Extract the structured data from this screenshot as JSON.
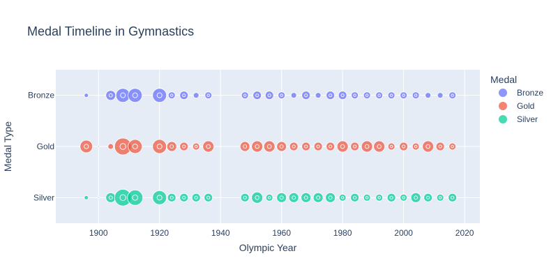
{
  "chart_data": {
    "type": "scatter",
    "title": "Medal Timeline in Gymnastics",
    "xlabel": "Olympic Year",
    "ylabel": "Medal Type",
    "xlim": [
      1886,
      2025
    ],
    "x_ticks": [
      1900,
      1920,
      1940,
      1960,
      1980,
      2000,
      2020
    ],
    "categories": [
      "Bronze",
      "Gold",
      "Silver"
    ],
    "legend": {
      "title": "Medal",
      "position": "right",
      "entries": [
        "Bronze",
        "Gold",
        "Silver"
      ]
    },
    "grid": true,
    "series": [
      {
        "name": "Bronze",
        "color": "#636efa",
        "points": [
          {
            "x": 1896,
            "size": 3
          },
          {
            "x": 1904,
            "size": 7
          },
          {
            "x": 1908,
            "size": 10
          },
          {
            "x": 1912,
            "size": 10
          },
          {
            "x": 1920,
            "size": 10
          },
          {
            "x": 1924,
            "size": 5
          },
          {
            "x": 1928,
            "size": 6
          },
          {
            "x": 1932,
            "size": 4
          },
          {
            "x": 1936,
            "size": 5
          },
          {
            "x": 1948,
            "size": 5
          },
          {
            "x": 1952,
            "size": 6
          },
          {
            "x": 1956,
            "size": 6
          },
          {
            "x": 1960,
            "size": 5
          },
          {
            "x": 1964,
            "size": 4
          },
          {
            "x": 1968,
            "size": 6
          },
          {
            "x": 1972,
            "size": 4
          },
          {
            "x": 1976,
            "size": 6
          },
          {
            "x": 1980,
            "size": 6
          },
          {
            "x": 1984,
            "size": 5
          },
          {
            "x": 1988,
            "size": 5
          },
          {
            "x": 1992,
            "size": 5
          },
          {
            "x": 1996,
            "size": 5
          },
          {
            "x": 2000,
            "size": 5
          },
          {
            "x": 2004,
            "size": 5
          },
          {
            "x": 2008,
            "size": 4
          },
          {
            "x": 2012,
            "size": 4
          },
          {
            "x": 2016,
            "size": 5
          }
        ]
      },
      {
        "name": "Gold",
        "color": "#ef553b",
        "points": [
          {
            "x": 1896,
            "size": 9
          },
          {
            "x": 1900,
            "size": 1
          },
          {
            "x": 1904,
            "size": 4
          },
          {
            "x": 1908,
            "size": 12
          },
          {
            "x": 1912,
            "size": 10
          },
          {
            "x": 1920,
            "size": 10
          },
          {
            "x": 1924,
            "size": 7
          },
          {
            "x": 1928,
            "size": 6
          },
          {
            "x": 1932,
            "size": 5
          },
          {
            "x": 1936,
            "size": 8
          },
          {
            "x": 1948,
            "size": 7
          },
          {
            "x": 1952,
            "size": 8
          },
          {
            "x": 1956,
            "size": 8
          },
          {
            "x": 1960,
            "size": 7
          },
          {
            "x": 1964,
            "size": 6
          },
          {
            "x": 1968,
            "size": 6
          },
          {
            "x": 1972,
            "size": 6
          },
          {
            "x": 1976,
            "size": 6
          },
          {
            "x": 1980,
            "size": 8
          },
          {
            "x": 1984,
            "size": 6
          },
          {
            "x": 1988,
            "size": 8
          },
          {
            "x": 1992,
            "size": 8
          },
          {
            "x": 1996,
            "size": 5
          },
          {
            "x": 2000,
            "size": 6
          },
          {
            "x": 2004,
            "size": 5
          },
          {
            "x": 2008,
            "size": 8
          },
          {
            "x": 2012,
            "size": 6
          },
          {
            "x": 2016,
            "size": 5
          }
        ]
      },
      {
        "name": "Silver",
        "color": "#00cc96",
        "points": [
          {
            "x": 1896,
            "size": 3
          },
          {
            "x": 1900,
            "size": 1
          },
          {
            "x": 1904,
            "size": 7
          },
          {
            "x": 1908,
            "size": 12
          },
          {
            "x": 1912,
            "size": 11
          },
          {
            "x": 1920,
            "size": 10
          },
          {
            "x": 1924,
            "size": 6
          },
          {
            "x": 1928,
            "size": 6
          },
          {
            "x": 1932,
            "size": 6
          },
          {
            "x": 1936,
            "size": 6
          },
          {
            "x": 1948,
            "size": 6
          },
          {
            "x": 1952,
            "size": 8
          },
          {
            "x": 1956,
            "size": 5
          },
          {
            "x": 1960,
            "size": 7
          },
          {
            "x": 1964,
            "size": 7
          },
          {
            "x": 1968,
            "size": 7
          },
          {
            "x": 1972,
            "size": 7
          },
          {
            "x": 1976,
            "size": 7
          },
          {
            "x": 1980,
            "size": 5
          },
          {
            "x": 1984,
            "size": 6
          },
          {
            "x": 1988,
            "size": 5
          },
          {
            "x": 1992,
            "size": 5
          },
          {
            "x": 1996,
            "size": 6
          },
          {
            "x": 2000,
            "size": 5
          },
          {
            "x": 2004,
            "size": 7
          },
          {
            "x": 2008,
            "size": 6
          },
          {
            "x": 2012,
            "size": 5
          },
          {
            "x": 2016,
            "size": 6
          }
        ]
      }
    ]
  }
}
